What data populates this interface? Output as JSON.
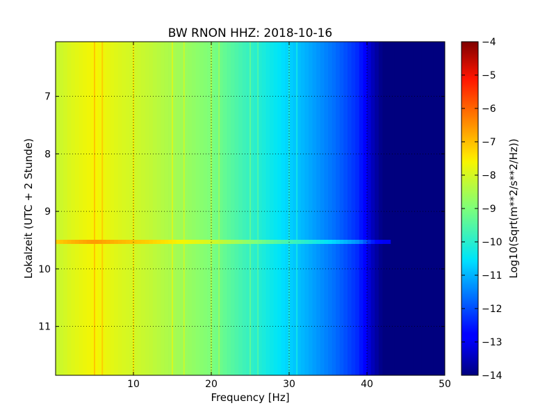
{
  "chart_data": {
    "type": "heatmap",
    "title": "BW RNON HHZ: 2018-10-16",
    "xlabel": "Frequency [Hz]",
    "ylabel": "Lokalzeit (UTC + 2 Stunde)",
    "xlim": [
      0,
      50
    ],
    "ylim": [
      11.85,
      6.05
    ],
    "x_ticks": [
      10,
      20,
      30,
      40,
      50
    ],
    "y_ticks": [
      7,
      8,
      9,
      10,
      11
    ],
    "grid": true,
    "colormap": "jet",
    "colorbar": {
      "label": "Log10(Sqrt(m**2/s**2/Hz))",
      "range": [
        -14,
        -4
      ],
      "ticks": [
        -4,
        -5,
        -6,
        -7,
        -8,
        -9,
        -10,
        -11,
        -12,
        -13,
        -14
      ]
    },
    "level_profile_by_frequency": {
      "frequency_hz": [
        0,
        2,
        5,
        8,
        12,
        16,
        20,
        24,
        28,
        32,
        36,
        39,
        40.5,
        42,
        50
      ],
      "log10_psd": [
        -8.2,
        -7.9,
        -7.6,
        -7.9,
        -8.2,
        -8.6,
        -9.0,
        -9.7,
        -10.4,
        -11.0,
        -11.7,
        -12.4,
        -13.4,
        -14.0,
        -14.0
      ]
    },
    "narrowband_lines_hz": [
      5.0,
      6.0,
      10.0,
      15.0,
      16.5,
      20.0,
      21.0,
      25.0,
      26.0,
      30.0,
      31.0
    ],
    "broadband_event_time_h": 9.53
  }
}
